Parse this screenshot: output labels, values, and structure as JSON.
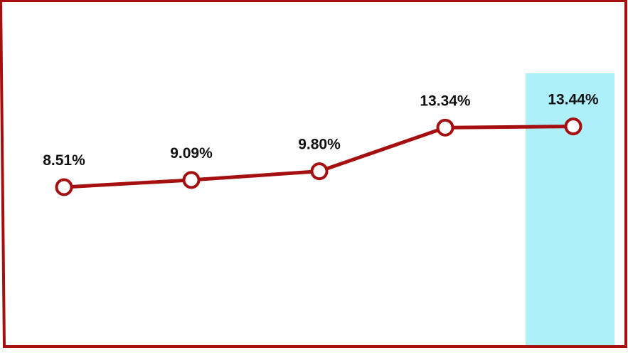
{
  "chart_data": {
    "type": "line",
    "categories": [
      "",
      "",
      "",
      "",
      ""
    ],
    "values": [
      8.51,
      9.09,
      9.8,
      13.34,
      13.44
    ],
    "data_labels": [
      "8.51%",
      "9.09%",
      "9.80%",
      "13.34%",
      "13.44%"
    ],
    "unit": "%",
    "title": "",
    "xlabel": "",
    "ylabel": "",
    "ylim": [
      0,
      20
    ],
    "grid": false,
    "highlighted_index": 4,
    "colors": {
      "line": "#a50f0f",
      "marker_fill": "#ffffff",
      "highlight": "#aef0fa",
      "frame": "#a50f0f"
    }
  }
}
